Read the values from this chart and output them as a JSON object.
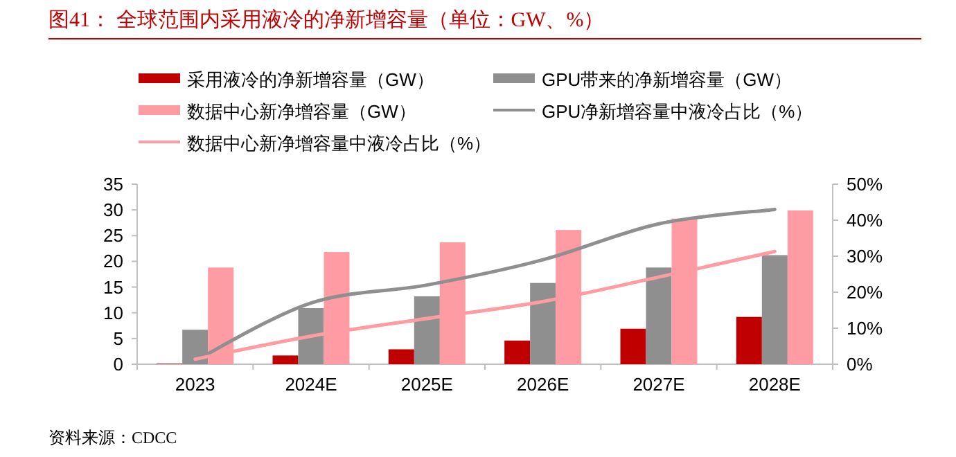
{
  "chart_data": {
    "type": "bar",
    "title": "图41：  全球范围内采用液冷的净新增容量（单位：GW、%）",
    "categories": [
      "2023",
      "2024E",
      "2025E",
      "2026E",
      "2027E",
      "2028E"
    ],
    "series": [
      {
        "name": "采用液冷的净新增容量（GW）",
        "color": "#c00000",
        "values": [
          0.1,
          1.7,
          2.9,
          4.6,
          6.9,
          9.2
        ]
      },
      {
        "name": "GPU带来的净新增容量（GW）",
        "color": "#8f8f8f",
        "values": [
          6.7,
          10.9,
          13.2,
          15.8,
          18.8,
          21.2
        ]
      },
      {
        "name": "数据中心新净增容量（GW）",
        "color": "#ff9ca3",
        "values": [
          18.8,
          21.8,
          23.7,
          26.1,
          28.3,
          29.9
        ]
      },
      {
        "name": "GPU净新增容量中液冷占比（%）",
        "type": "line",
        "axis": "y2",
        "color": "#8f8f8f",
        "values": [
          1,
          17,
          22,
          29,
          39,
          43
        ]
      },
      {
        "name": "数据中心新净增容量中液冷占比（%）",
        "type": "line",
        "axis": "y2",
        "color": "#ff9ca3",
        "values": [
          1.4,
          7.8,
          12.7,
          17.4,
          24.2,
          31.3
        ]
      }
    ],
    "ylim": [
      0,
      35
    ],
    "yticks": [
      0,
      5,
      10,
      15,
      20,
      25,
      30,
      35
    ],
    "y2lim": [
      0,
      50
    ],
    "y2ticks": [
      {
        "value": 0,
        "label": "0%"
      },
      {
        "value": 10,
        "label": "10%"
      },
      {
        "value": 20,
        "label": "20%"
      },
      {
        "value": 30,
        "label": "30%"
      },
      {
        "value": 40,
        "label": "40%"
      },
      {
        "value": 50,
        "label": "50%"
      }
    ],
    "legend": "top",
    "grid": false,
    "annotations": [
      "资料来源：CDCC"
    ]
  }
}
